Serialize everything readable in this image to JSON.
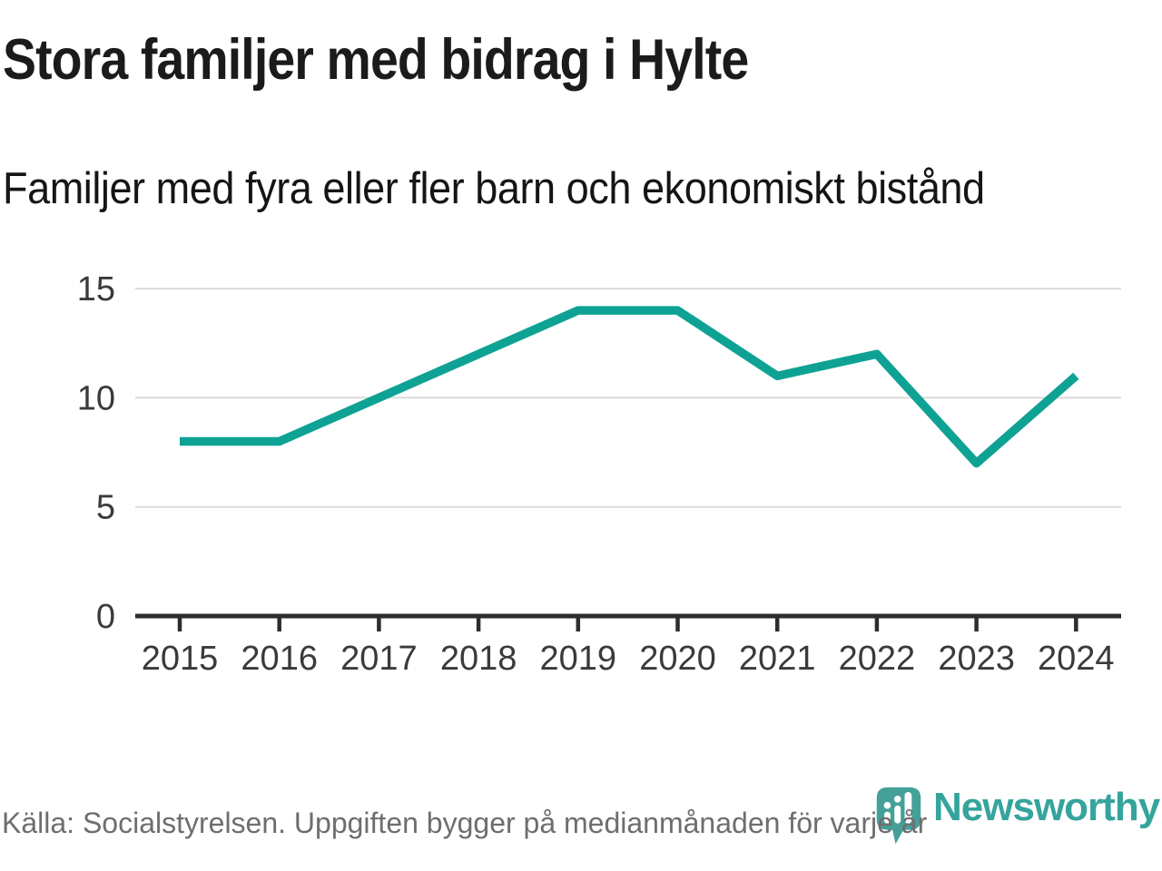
{
  "header": {
    "title_ref": "see chart_data.title",
    "subtitle_ref": "see chart_data.subtitle"
  },
  "chart_data": {
    "type": "line",
    "title": "Stora familjer med bidrag i Hylte",
    "subtitle": "Familjer med fyra eller fler barn och ekonomiskt bistånd",
    "x": [
      2015,
      2016,
      2017,
      2018,
      2019,
      2020,
      2021,
      2022,
      2023,
      2024
    ],
    "series": [
      {
        "name": "Familjer med fyra eller fler barn och ekonomiskt bistånd",
        "values": [
          8,
          8,
          10,
          12,
          14,
          14,
          11,
          12,
          7,
          11
        ]
      }
    ],
    "xlabel": "",
    "ylabel": "",
    "ylim": [
      0,
      15
    ],
    "yticks": [
      0,
      5,
      10,
      15
    ],
    "grid": "horizontal-only",
    "legend": "none",
    "line_color": "#0EA294"
  },
  "footer": {
    "source": "Källa: Socialstyrelsen. Uppgiften bygger på medianmånaden för varje år"
  },
  "branding": {
    "name": "Newsworthy",
    "icon": "newsworthy-speech-bubble-bar-chart-icon"
  },
  "colors": {
    "accent_line": "#0EA294",
    "brand_teal": "#35A49C",
    "grid": "#DBDBDB",
    "axis": "#2D2D2D",
    "tick_label": "#3A3A3A",
    "title_text": "#1B1B1B",
    "subtitle_text": "#151515",
    "footer_text": "#6E6E6E",
    "background": "#FFFFFF",
    "logo_bubble": "#43A19A",
    "logo_glyph": "#FFFFFF"
  }
}
